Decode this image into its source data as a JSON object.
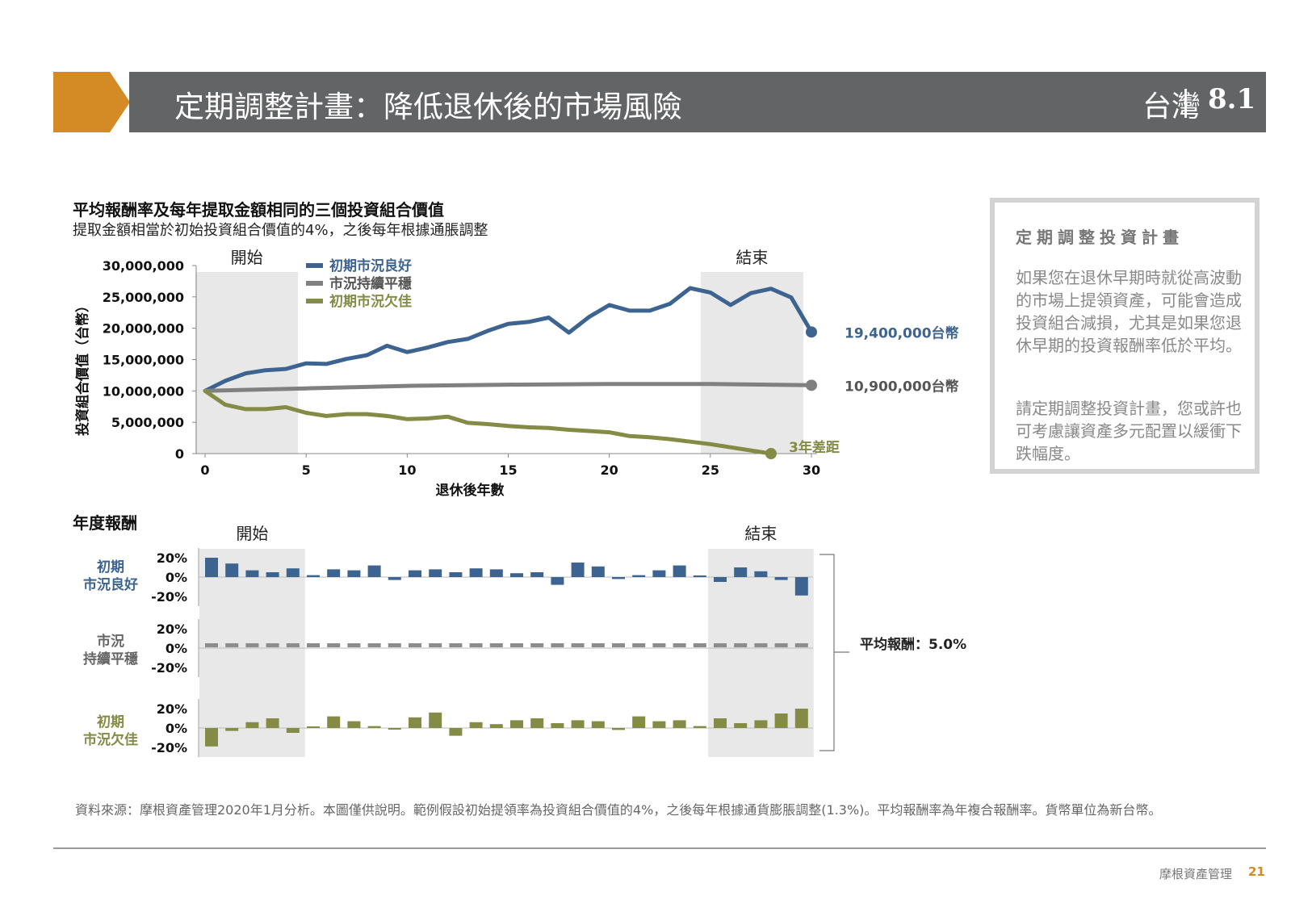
{
  "header": {
    "title": "定期調整計畫：降低退休後的市場風險",
    "region": "台灣",
    "section_number": "8.1",
    "accent_color": "#d48a25",
    "bar_color": "#636466"
  },
  "chart_data": [
    {
      "type": "line",
      "title": "平均報酬率及每年提取金額相同的三個投資組合價值",
      "subtitle": "提取金額相當於初始投資組合價值的4%，之後每年根據通脹調整",
      "xlabel": "退休後年數",
      "ylabel": "投資組合價值（台幣）",
      "xlim": [
        0,
        30
      ],
      "ylim": [
        0,
        30000000
      ],
      "x_ticks": [
        "0",
        "5",
        "10",
        "15",
        "20",
        "25",
        "30"
      ],
      "y_ticks": [
        "0",
        "5,000,000",
        "10,000,000",
        "15,000,000",
        "20,000,000",
        "25,000,000",
        "30,000,000"
      ],
      "shaded_regions": [
        {
          "label": "開始",
          "x_range": [
            0,
            5
          ]
        },
        {
          "label": "結束",
          "x_range": [
            25,
            30
          ]
        }
      ],
      "legend_position": "top-left",
      "series": [
        {
          "name": "初期市況良好",
          "color": "#3d6491",
          "x": [
            0,
            1,
            2,
            3,
            4,
            5,
            6,
            7,
            8,
            9,
            10,
            11,
            12,
            13,
            14,
            15,
            16,
            17,
            18,
            19,
            20,
            21,
            22,
            23,
            24,
            25,
            26,
            27,
            28,
            29,
            30
          ],
          "values": [
            10000000,
            11600000,
            12800000,
            13300000,
            13500000,
            14400000,
            14300000,
            15100000,
            15700000,
            17200000,
            16200000,
            16900000,
            17800000,
            18300000,
            19600000,
            20700000,
            21000000,
            21700000,
            19300000,
            21800000,
            23700000,
            22800000,
            22800000,
            23900000,
            26400000,
            25700000,
            23700000,
            25600000,
            26300000,
            24900000,
            19400000
          ],
          "end_label": "19,400,000台幣"
        },
        {
          "name": "市況持續平穩",
          "color": "#808080",
          "x": [
            0,
            5,
            10,
            15,
            20,
            25,
            30
          ],
          "values": [
            10000000,
            10400000,
            10800000,
            11000000,
            11100000,
            11100000,
            10900000
          ],
          "end_label": "10,900,000台幣"
        },
        {
          "name": "初期市況欠佳",
          "color": "#838b45",
          "x": [
            0,
            1,
            2,
            3,
            4,
            5,
            6,
            7,
            8,
            9,
            10,
            11,
            12,
            13,
            14,
            15,
            16,
            17,
            18,
            19,
            20,
            21,
            22,
            23,
            24,
            25,
            26,
            27,
            28,
            29,
            30
          ],
          "values": [
            10000000,
            7800000,
            7100000,
            7100000,
            7400000,
            6500000,
            6000000,
            6300000,
            6300000,
            6000000,
            5500000,
            5600000,
            5900000,
            4900000,
            4700000,
            4400000,
            4200000,
            4100000,
            3800000,
            3600000,
            3400000,
            2800000,
            2600000,
            2300000,
            1900000,
            1500000,
            1000000,
            500000,
            0,
            null,
            null
          ],
          "end_label": "3年差距"
        }
      ]
    },
    {
      "type": "bar",
      "title": "年度報酬",
      "xlim": [
        1,
        30
      ],
      "ylim": [
        -20,
        20
      ],
      "y_ticks": [
        "20%",
        "0%",
        "-20%"
      ],
      "shaded_regions": [
        {
          "label": "開始",
          "x_range": [
            1,
            5
          ]
        },
        {
          "label": "結束",
          "x_range": [
            26,
            30
          ]
        }
      ],
      "annotation": "平均報酬：5.0%",
      "series": [
        {
          "name": "初期\n市況良好",
          "color": "#3d6491",
          "values": [
            20,
            14,
            7,
            5,
            9,
            2,
            8,
            7,
            12,
            -3,
            7,
            8,
            5,
            9,
            8,
            4,
            5,
            -8,
            15,
            11,
            -2,
            2,
            7,
            12,
            0,
            -5,
            10,
            6,
            -3,
            -19
          ]
        },
        {
          "name": "市況\n持續平穩",
          "color": "#8c8c8c",
          "values": [
            5,
            5,
            5,
            5,
            5,
            5,
            5,
            5,
            5,
            5,
            5,
            5,
            5,
            5,
            5,
            5,
            5,
            5,
            5,
            5,
            5,
            5,
            5,
            5,
            5,
            5,
            5,
            5,
            5,
            5
          ]
        },
        {
          "name": "初期\n市況欠佳",
          "color": "#838b45",
          "values": [
            -19,
            -3,
            6,
            10,
            -5,
            0,
            12,
            7,
            2,
            -1,
            11,
            16,
            -8,
            6,
            4,
            8,
            10,
            5,
            8,
            7,
            -2,
            12,
            7,
            8,
            2,
            10,
            5,
            8,
            15,
            20
          ]
        }
      ]
    }
  ],
  "side_panel": {
    "title": "定期調整投資計畫",
    "paragraph1": "如果您在退休早期時就從高波動的市場上提領資產，可能會造成投資組合減損，尤其是如果您退休早期的投資報酬率低於平均。",
    "paragraph2": "請定期調整投資計畫，您或許也可考慮讓資產多元配置以緩衝下跌幅度。"
  },
  "footnote": "資料來源：摩根資產管理2020年1月分析。本圖僅供說明。範例假設初始提領率為投資組合價值的4%，之後每年根據通貨膨脹調整(1.3%)。平均報酬率為年複合報酬率。貨幣單位為新台幣。",
  "footer": {
    "brand": "摩根資產管理",
    "page": "21"
  }
}
